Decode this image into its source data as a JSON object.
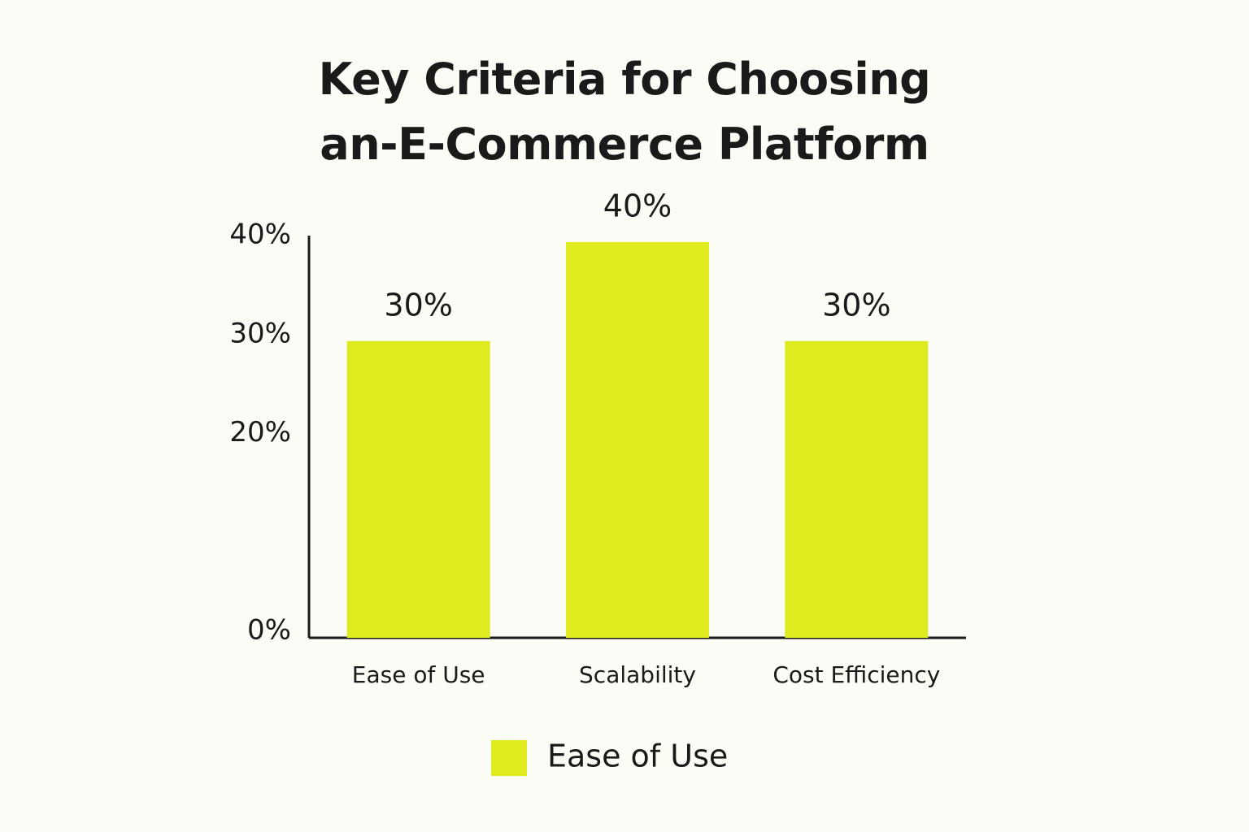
{
  "chart_data": {
    "type": "bar",
    "title": "Key Criteria for Choosing an-E-Commerce Platform",
    "categories": [
      "Ease of Use",
      "Scalability",
      "Cost Efficiency"
    ],
    "series": [
      {
        "name": "Ease of Use",
        "color": "#dfeb1e",
        "values": [
          30,
          40,
          30
        ],
        "value_labels": [
          "30%",
          "40%",
          "30%"
        ]
      }
    ],
    "ylim": [
      0,
      40
    ],
    "yticks": [
      {
        "value": 0,
        "label": "0%"
      },
      {
        "value": 20,
        "label": "20%"
      },
      {
        "value": 30,
        "label": "30%"
      },
      {
        "value": 40,
        "label": "40%"
      }
    ],
    "grid": false
  }
}
